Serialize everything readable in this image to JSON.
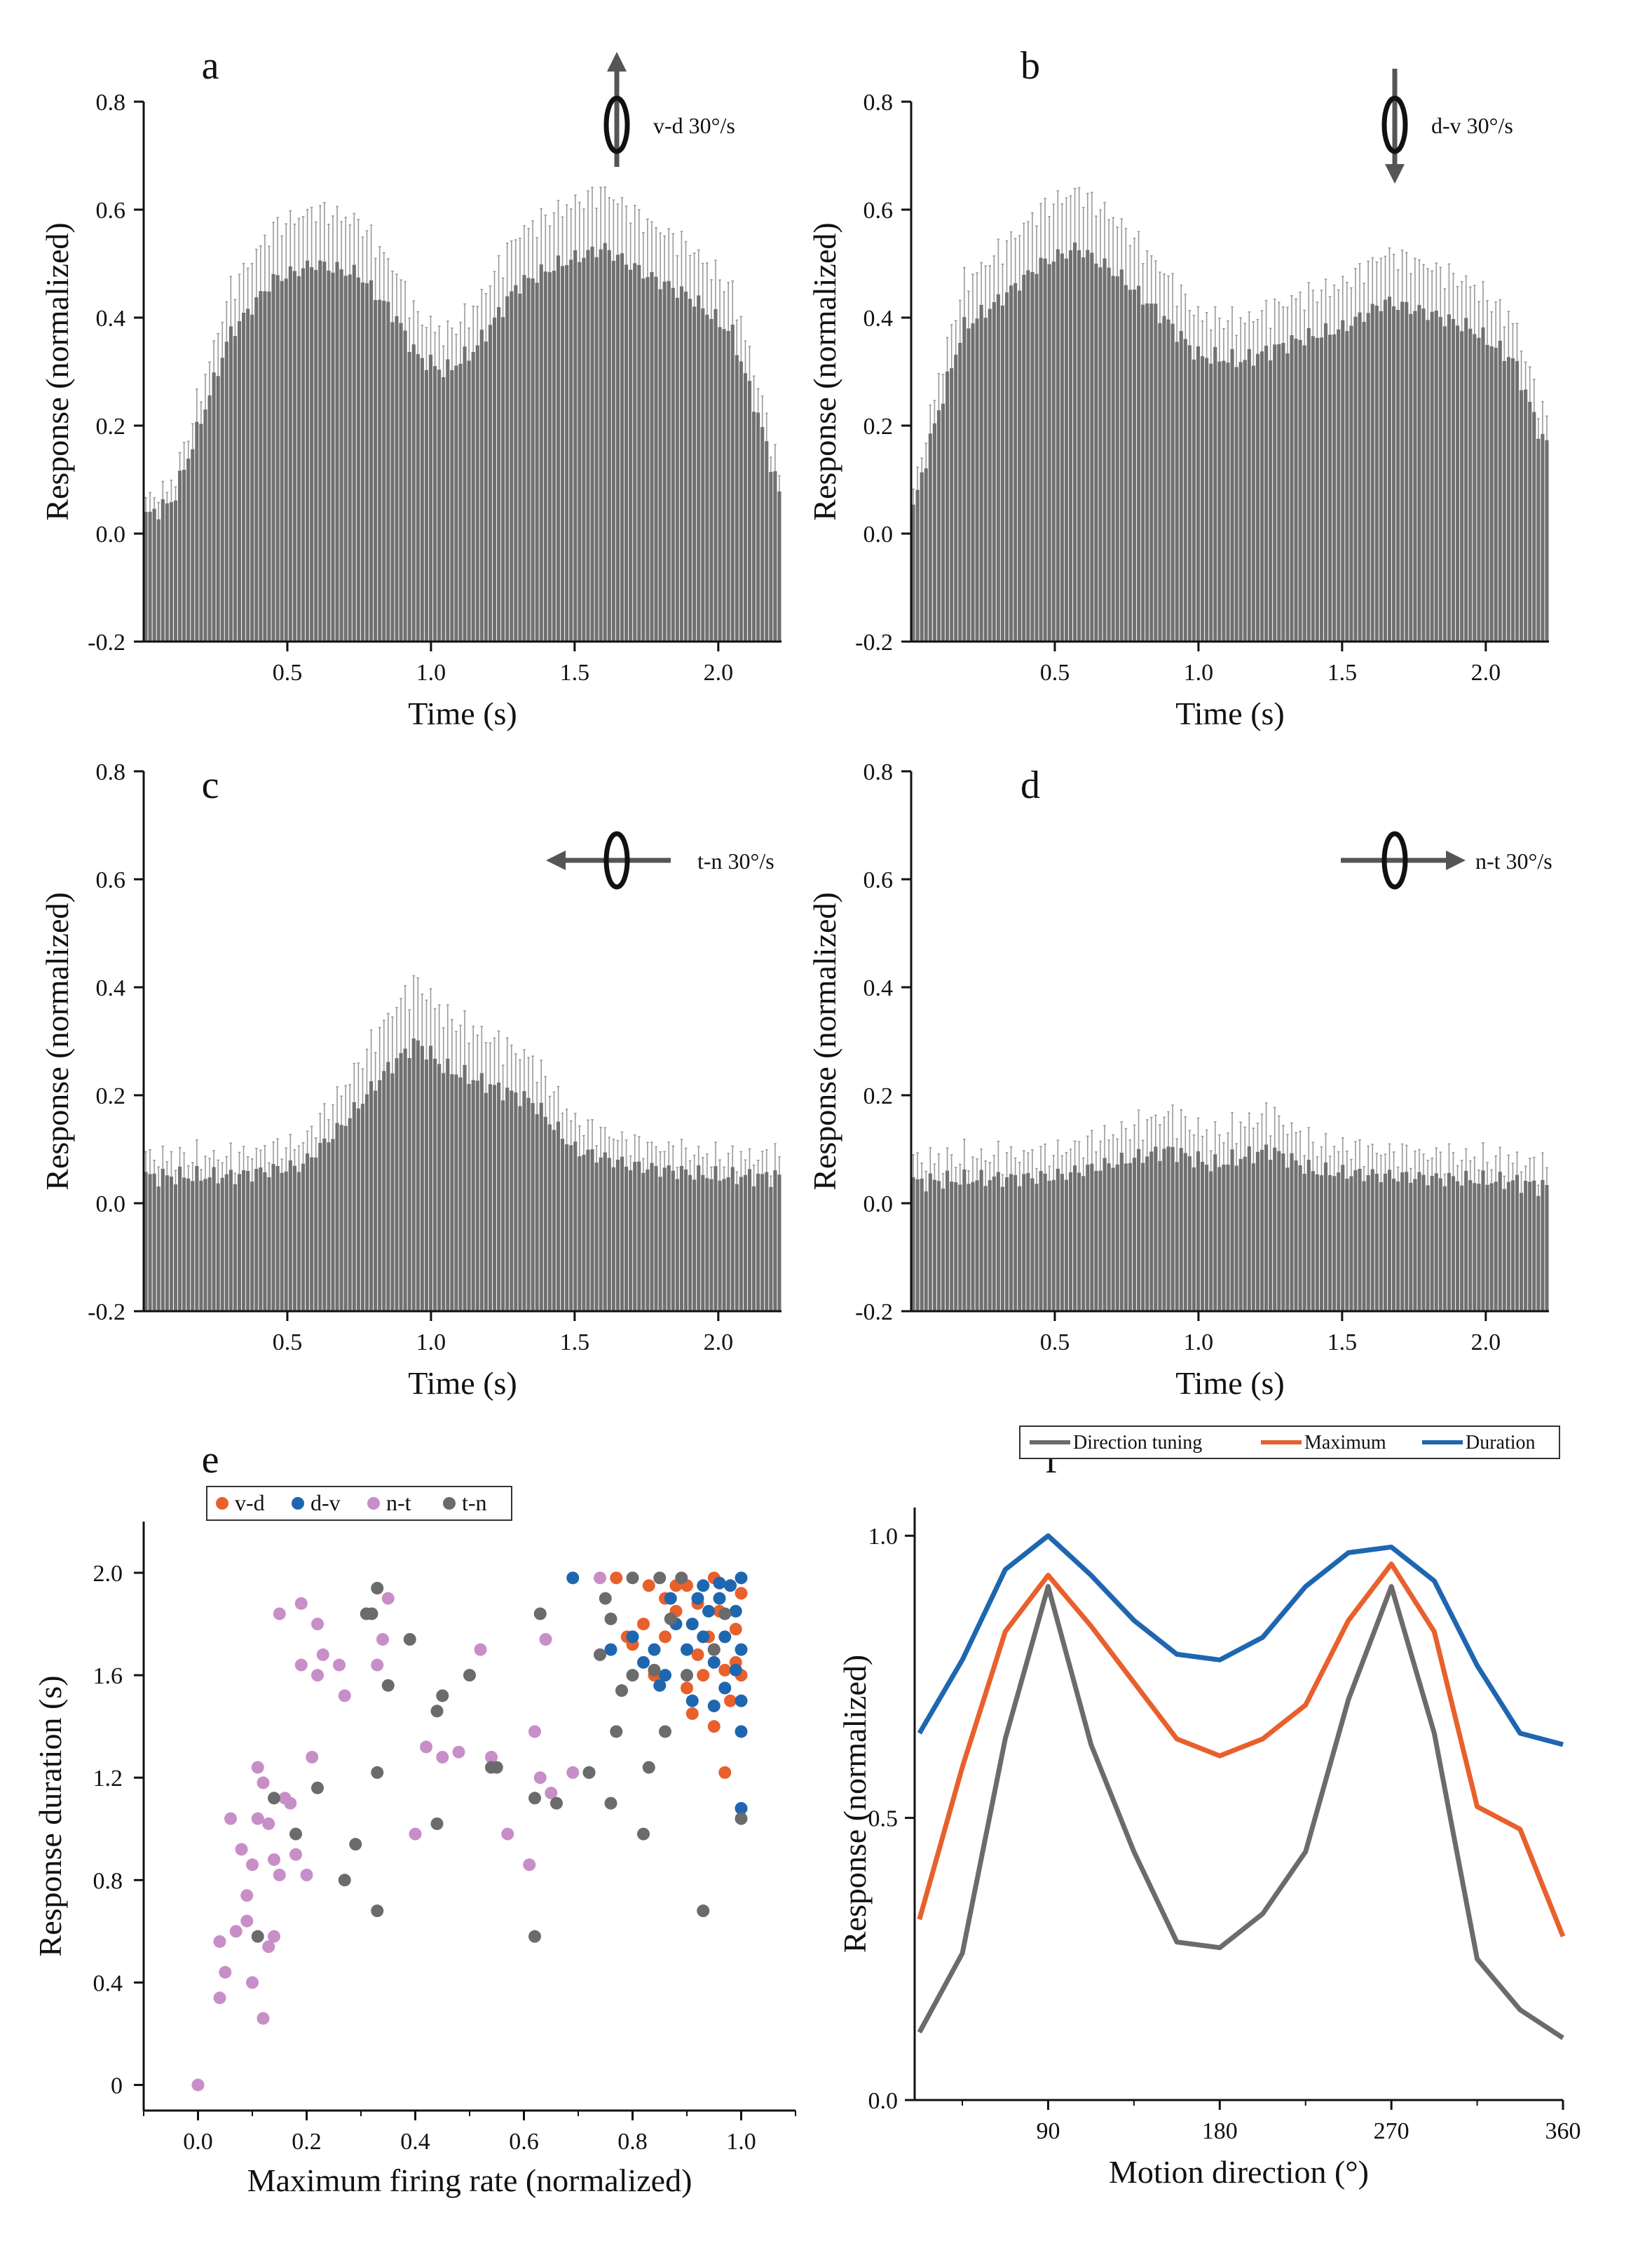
{
  "figure": {
    "colors": {
      "bar": "#707070",
      "error": "#9a9a9a",
      "arrow": "#555555",
      "axis": "#111111"
    }
  },
  "chart_data": [
    {
      "panel": "a",
      "type": "bar",
      "xlabel": "Time (s)",
      "ylabel": "Response (normalized)",
      "xlim": [
        0,
        2.22
      ],
      "ylim": [
        -0.2,
        0.8
      ],
      "xticks": [
        0.5,
        1.0,
        1.5,
        2.0
      ],
      "yticks": [
        -0.2,
        0.0,
        0.2,
        0.4,
        0.6,
        0.8
      ],
      "stimulus": {
        "label": "v-d  30°/s",
        "direction": "up"
      },
      "bins": 150,
      "bar_floor": -0.2,
      "profile": [
        [
          0,
          0.03
        ],
        [
          0.1,
          0.06
        ],
        [
          0.18,
          0.18
        ],
        [
          0.3,
          0.37
        ],
        [
          0.45,
          0.47
        ],
        [
          0.6,
          0.5
        ],
        [
          0.75,
          0.48
        ],
        [
          0.88,
          0.4
        ],
        [
          0.95,
          0.33
        ],
        [
          1.05,
          0.3
        ],
        [
          1.15,
          0.34
        ],
        [
          1.3,
          0.46
        ],
        [
          1.45,
          0.5
        ],
        [
          1.6,
          0.53
        ],
        [
          1.75,
          0.48
        ],
        [
          1.9,
          0.44
        ],
        [
          2.05,
          0.37
        ],
        [
          2.15,
          0.2
        ],
        [
          2.22,
          0.06
        ]
      ],
      "error_scale": 0.16
    },
    {
      "panel": "b",
      "type": "bar",
      "xlabel": "Time (s)",
      "ylabel": "Response (normalized)",
      "xlim": [
        0,
        2.22
      ],
      "ylim": [
        -0.2,
        0.8
      ],
      "xticks": [
        0.5,
        1.0,
        1.5,
        2.0
      ],
      "yticks": [
        -0.2,
        0.0,
        0.2,
        0.4,
        0.6,
        0.8
      ],
      "stimulus": {
        "label": "d-v  30°/s",
        "direction": "down"
      },
      "bins": 150,
      "bar_floor": -0.2,
      "profile": [
        [
          0,
          0.03
        ],
        [
          0.08,
          0.2
        ],
        [
          0.18,
          0.38
        ],
        [
          0.3,
          0.43
        ],
        [
          0.45,
          0.5
        ],
        [
          0.58,
          0.53
        ],
        [
          0.72,
          0.48
        ],
        [
          0.88,
          0.4
        ],
        [
          1.0,
          0.33
        ],
        [
          1.15,
          0.32
        ],
        [
          1.35,
          0.36
        ],
        [
          1.5,
          0.38
        ],
        [
          1.65,
          0.43
        ],
        [
          1.8,
          0.41
        ],
        [
          1.95,
          0.38
        ],
        [
          2.1,
          0.32
        ],
        [
          2.2,
          0.17
        ]
      ],
      "error_scale": 0.16
    },
    {
      "panel": "c",
      "type": "bar",
      "xlabel": "Time (s)",
      "ylabel": "Response (normalized)",
      "xlim": [
        0,
        2.22
      ],
      "ylim": [
        -0.2,
        0.8
      ],
      "xticks": [
        0.5,
        1.0,
        1.5,
        2.0
      ],
      "yticks": [
        -0.2,
        0.0,
        0.2,
        0.4,
        0.6,
        0.8
      ],
      "stimulus": {
        "label": "t-n  30°/s",
        "direction": "left"
      },
      "bins": 150,
      "bar_floor": -0.2,
      "profile": [
        [
          0,
          0.05
        ],
        [
          0.3,
          0.05
        ],
        [
          0.55,
          0.07
        ],
        [
          0.7,
          0.15
        ],
        [
          0.85,
          0.25
        ],
        [
          0.95,
          0.3
        ],
        [
          1.05,
          0.25
        ],
        [
          1.2,
          0.22
        ],
        [
          1.35,
          0.19
        ],
        [
          1.5,
          0.1
        ],
        [
          1.7,
          0.07
        ],
        [
          2.0,
          0.05
        ],
        [
          2.22,
          0.05
        ]
      ],
      "error_scale": 0.3
    },
    {
      "panel": "d",
      "type": "bar",
      "xlabel": "Time (s)",
      "ylabel": "Response (normalized)",
      "xlim": [
        0,
        2.22
      ],
      "ylim": [
        -0.2,
        0.8
      ],
      "xticks": [
        0.5,
        1.0,
        1.5,
        2.0
      ],
      "yticks": [
        -0.2,
        0.0,
        0.2,
        0.4,
        0.6,
        0.8
      ],
      "stimulus": {
        "label": "n-t  30°/s",
        "direction": "right"
      },
      "bins": 150,
      "bar_floor": -0.2,
      "profile": [
        [
          0,
          0.04
        ],
        [
          0.5,
          0.05
        ],
        [
          0.75,
          0.08
        ],
        [
          0.9,
          0.1
        ],
        [
          1.05,
          0.07
        ],
        [
          1.25,
          0.1
        ],
        [
          1.4,
          0.06
        ],
        [
          1.7,
          0.05
        ],
        [
          2.1,
          0.04
        ],
        [
          2.22,
          0.03
        ]
      ],
      "error_scale": 0.45
    },
    {
      "panel": "e",
      "type": "scatter",
      "xlabel": "Maximum  firing rate (normalized)",
      "ylabel": "Response duration (s)",
      "xlim": [
        -0.1,
        1.1
      ],
      "ylim": [
        -0.1,
        2.2
      ],
      "xticks": [
        0.0,
        0.2,
        0.4,
        0.6,
        0.8,
        1.0
      ],
      "yticks": [
        0,
        0.4,
        0.8,
        1.2,
        1.6,
        2.0
      ],
      "ytick_labels": [
        "0",
        "0.4",
        "0.8",
        "1.2",
        "1.6",
        "2.0"
      ],
      "legend": [
        "v-d",
        "d-v",
        "n-t",
        "t-n"
      ],
      "series": [
        {
          "name": "v-d",
          "color": "#e8602c",
          "points": [
            [
              0.77,
              1.98
            ],
            [
              0.8,
              1.72
            ],
            [
              0.83,
              1.95
            ],
            [
              0.86,
              1.9
            ],
            [
              0.88,
              1.95
            ],
            [
              0.9,
              1.55
            ],
            [
              0.91,
              1.45
            ],
            [
              0.92,
              1.68
            ],
            [
              0.93,
              1.6
            ],
            [
              0.94,
              1.75
            ],
            [
              0.95,
              1.4
            ],
            [
              0.96,
              1.85
            ],
            [
              0.97,
              1.22
            ],
            [
              0.98,
              1.5
            ],
            [
              0.99,
              1.65
            ],
            [
              1.0,
              1.92
            ],
            [
              0.86,
              1.75
            ],
            [
              0.82,
              1.8
            ],
            [
              0.9,
              1.95
            ],
            [
              0.95,
              1.98
            ],
            [
              0.99,
              1.78
            ],
            [
              0.97,
              1.62
            ],
            [
              0.84,
              1.6
            ],
            [
              0.79,
              1.75
            ],
            [
              0.92,
              1.88
            ],
            [
              0.88,
              1.85
            ],
            [
              0.95,
              1.7
            ],
            [
              1.0,
              1.6
            ]
          ]
        },
        {
          "name": "d-v",
          "color": "#1f66b0",
          "points": [
            [
              0.69,
              1.98
            ],
            [
              0.76,
              1.7
            ],
            [
              0.8,
              1.75
            ],
            [
              0.82,
              1.65
            ],
            [
              0.84,
              1.7
            ],
            [
              0.85,
              1.56
            ],
            [
              0.86,
              1.6
            ],
            [
              0.88,
              1.8
            ],
            [
              0.9,
              1.7
            ],
            [
              0.91,
              1.5
            ],
            [
              0.92,
              1.9
            ],
            [
              0.93,
              1.95
            ],
            [
              0.94,
              1.85
            ],
            [
              0.95,
              1.65
            ],
            [
              0.96,
              1.9
            ],
            [
              0.97,
              1.55
            ],
            [
              0.98,
              1.95
            ],
            [
              0.99,
              1.85
            ],
            [
              1.0,
              1.98
            ],
            [
              1.0,
              1.7
            ],
            [
              1.0,
              1.5
            ],
            [
              1.0,
              1.38
            ],
            [
              1.0,
              1.08
            ],
            [
              0.96,
              1.96
            ],
            [
              0.93,
              1.75
            ],
            [
              0.97,
              1.75
            ],
            [
              0.99,
              1.62
            ],
            [
              0.91,
              1.8
            ],
            [
              0.87,
              1.9
            ],
            [
              0.95,
              1.48
            ]
          ]
        },
        {
          "name": "n-t",
          "color": "#c88ec8",
          "points": [
            [
              0.0,
              0.0
            ],
            [
              0.04,
              0.34
            ],
            [
              0.04,
              0.56
            ],
            [
              0.05,
              0.44
            ],
            [
              0.06,
              1.04
            ],
            [
              0.07,
              0.6
            ],
            [
              0.08,
              0.92
            ],
            [
              0.09,
              0.74
            ],
            [
              0.09,
              0.64
            ],
            [
              0.1,
              0.86
            ],
            [
              0.1,
              0.4
            ],
            [
              0.11,
              1.04
            ],
            [
              0.11,
              1.24
            ],
            [
              0.12,
              1.18
            ],
            [
              0.12,
              0.26
            ],
            [
              0.13,
              0.54
            ],
            [
              0.13,
              1.02
            ],
            [
              0.14,
              0.88
            ],
            [
              0.14,
              0.58
            ],
            [
              0.15,
              1.84
            ],
            [
              0.15,
              0.82
            ],
            [
              0.16,
              1.12
            ],
            [
              0.17,
              1.1
            ],
            [
              0.18,
              0.9
            ],
            [
              0.19,
              1.64
            ],
            [
              0.19,
              1.88
            ],
            [
              0.2,
              0.82
            ],
            [
              0.21,
              1.28
            ],
            [
              0.22,
              1.8
            ],
            [
              0.22,
              1.6
            ],
            [
              0.23,
              1.68
            ],
            [
              0.26,
              1.64
            ],
            [
              0.27,
              1.52
            ],
            [
              0.33,
              1.64
            ],
            [
              0.34,
              1.74
            ],
            [
              0.35,
              1.9
            ],
            [
              0.4,
              0.98
            ],
            [
              0.42,
              1.32
            ],
            [
              0.45,
              1.28
            ],
            [
              0.48,
              1.3
            ],
            [
              0.52,
              1.7
            ],
            [
              0.54,
              1.28
            ],
            [
              0.57,
              0.98
            ],
            [
              0.61,
              0.86
            ],
            [
              0.62,
              1.38
            ],
            [
              0.63,
              1.2
            ],
            [
              0.64,
              1.74
            ],
            [
              0.65,
              1.14
            ],
            [
              0.69,
              1.22
            ],
            [
              0.72,
              1.22
            ],
            [
              0.74,
              1.98
            ]
          ]
        },
        {
          "name": "t-n",
          "color": "#6b6b6b",
          "points": [
            [
              0.11,
              0.58
            ],
            [
              0.14,
              1.12
            ],
            [
              0.18,
              0.98
            ],
            [
              0.22,
              1.16
            ],
            [
              0.27,
              0.8
            ],
            [
              0.29,
              0.94
            ],
            [
              0.31,
              1.84
            ],
            [
              0.32,
              1.84
            ],
            [
              0.33,
              1.94
            ],
            [
              0.33,
              1.22
            ],
            [
              0.33,
              0.68
            ],
            [
              0.35,
              1.56
            ],
            [
              0.39,
              1.74
            ],
            [
              0.44,
              1.02
            ],
            [
              0.44,
              1.46
            ],
            [
              0.45,
              1.52
            ],
            [
              0.5,
              1.6
            ],
            [
              0.54,
              1.24
            ],
            [
              0.55,
              1.24
            ],
            [
              0.62,
              0.58
            ],
            [
              0.62,
              1.12
            ],
            [
              0.63,
              1.84
            ],
            [
              0.66,
              1.1
            ],
            [
              0.72,
              1.22
            ],
            [
              0.74,
              1.68
            ],
            [
              0.76,
              1.1
            ],
            [
              0.77,
              1.38
            ],
            [
              0.78,
              1.54
            ],
            [
              0.8,
              1.6
            ],
            [
              0.82,
              0.98
            ],
            [
              0.83,
              1.24
            ],
            [
              0.84,
              1.62
            ],
            [
              0.85,
              1.98
            ],
            [
              0.86,
              1.38
            ],
            [
              0.87,
              1.82
            ],
            [
              0.89,
              1.98
            ],
            [
              0.9,
              1.6
            ],
            [
              0.93,
              0.68
            ],
            [
              0.95,
              1.7
            ],
            [
              0.97,
              1.84
            ],
            [
              1.0,
              1.04
            ],
            [
              0.75,
              1.9
            ],
            [
              0.8,
              1.98
            ],
            [
              0.76,
              1.82
            ]
          ]
        }
      ]
    },
    {
      "panel": "f",
      "type": "line",
      "xlabel": "Motion direction (°)",
      "ylabel": "Response (normalized)",
      "xlim": [
        20,
        360
      ],
      "ylim": [
        0.0,
        1.05
      ],
      "xticks": [
        90,
        180,
        270,
        360
      ],
      "yticks": [
        0.0,
        0.5,
        1.0
      ],
      "legend": [
        "Direction tuning",
        "Maximum",
        "Duration"
      ],
      "x": [
        22.5,
        45,
        67.5,
        90,
        112.5,
        135,
        157.5,
        180,
        202.5,
        225,
        247.5,
        270,
        292.5,
        315,
        337.5,
        360
      ],
      "series": [
        {
          "name": "Direction tuning",
          "color": "#6b6b6b",
          "values": [
            0.12,
            0.26,
            0.64,
            0.91,
            0.63,
            0.44,
            0.28,
            0.27,
            0.33,
            0.44,
            0.71,
            0.91,
            0.65,
            0.25,
            0.16,
            0.11
          ]
        },
        {
          "name": "Maximum",
          "color": "#e8602c",
          "values": [
            0.32,
            0.59,
            0.83,
            0.93,
            0.84,
            0.74,
            0.64,
            0.61,
            0.64,
            0.7,
            0.85,
            0.95,
            0.83,
            0.52,
            0.48,
            0.29
          ]
        },
        {
          "name": "Duration",
          "color": "#1f66b0",
          "values": [
            0.65,
            0.78,
            0.94,
            1.0,
            0.93,
            0.85,
            0.79,
            0.78,
            0.82,
            0.91,
            0.97,
            0.98,
            0.92,
            0.77,
            0.65,
            0.63
          ]
        }
      ]
    }
  ]
}
